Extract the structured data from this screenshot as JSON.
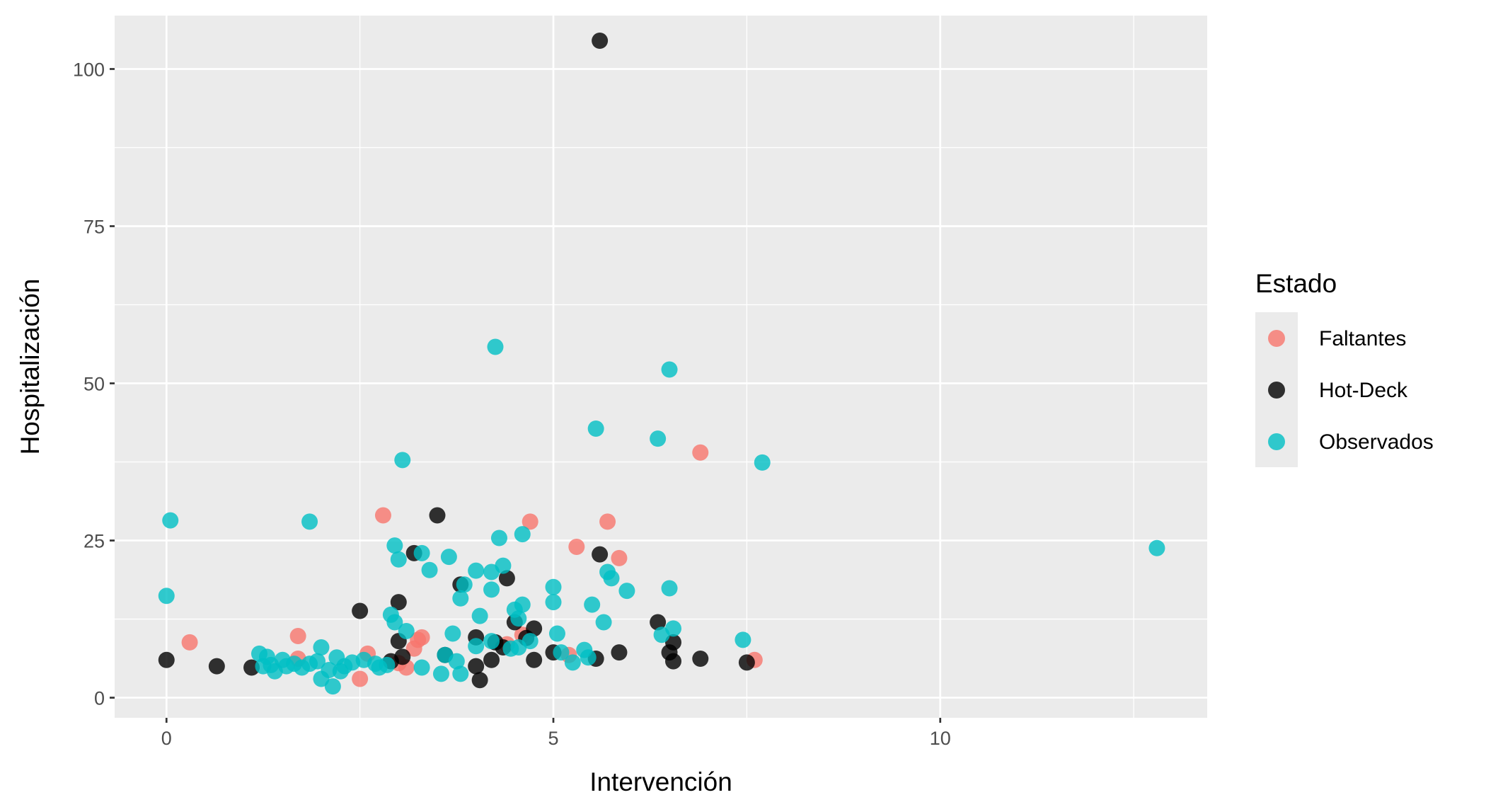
{
  "chart_data": {
    "type": "scatter",
    "title": "",
    "xlabel": "Intervención",
    "ylabel": "Hospitalización",
    "xlim": [
      -0.67,
      13.45
    ],
    "ylim": [
      -3.2,
      108.5
    ],
    "x_ticks": [
      0,
      5,
      10
    ],
    "x_tick_labels": [
      "0",
      "5",
      "10"
    ],
    "y_ticks": [
      0,
      25,
      50,
      75,
      100
    ],
    "y_tick_labels": [
      "0",
      "25",
      "50",
      "75",
      "100"
    ],
    "grid": true,
    "legend": {
      "title": "Estado",
      "position": "right",
      "entries": [
        {
          "label": "Faltantes",
          "color": "#F8766D"
        },
        {
          "label": "Hot-Deck",
          "color": "#000000"
        },
        {
          "label": "Observados",
          "color": "#00BFC4"
        }
      ]
    },
    "colors": {
      "panel_background": "#EBEBEB",
      "grid": "#FFFFFF"
    },
    "series": [
      {
        "name": "Faltantes",
        "color": "#F8766D",
        "points": [
          [
            0.3,
            8.8
          ],
          [
            1.7,
            9.8
          ],
          [
            1.7,
            6.2
          ],
          [
            2.5,
            3.0
          ],
          [
            2.6,
            7.0
          ],
          [
            2.8,
            29.0
          ],
          [
            3.1,
            4.8
          ],
          [
            3.2,
            7.8
          ],
          [
            3.25,
            9.2
          ],
          [
            3.3,
            9.6
          ],
          [
            4.6,
            10.0
          ],
          [
            4.7,
            28.0
          ],
          [
            5.3,
            24.0
          ],
          [
            5.2,
            6.8
          ],
          [
            5.7,
            28.0
          ],
          [
            5.85,
            22.2
          ],
          [
            6.9,
            39.0
          ],
          [
            7.6,
            6.0
          ],
          [
            4.4,
            8.5
          ],
          [
            3.0,
            5.5
          ]
        ]
      },
      {
        "name": "Hot-Deck",
        "color": "#000000",
        "points": [
          [
            0.0,
            6.0
          ],
          [
            0.65,
            5.0
          ],
          [
            1.1,
            4.8
          ],
          [
            2.5,
            13.8
          ],
          [
            2.9,
            5.8
          ],
          [
            3.0,
            15.2
          ],
          [
            3.0,
            9.0
          ],
          [
            3.05,
            6.5
          ],
          [
            3.2,
            23.0
          ],
          [
            3.5,
            29.0
          ],
          [
            3.6,
            6.8
          ],
          [
            3.8,
            18.0
          ],
          [
            4.0,
            9.6
          ],
          [
            4.0,
            5.0
          ],
          [
            4.05,
            2.8
          ],
          [
            4.2,
            6.0
          ],
          [
            4.25,
            8.8
          ],
          [
            4.35,
            8.0
          ],
          [
            4.4,
            19.0
          ],
          [
            4.5,
            12.0
          ],
          [
            4.75,
            11.0
          ],
          [
            4.75,
            6.0
          ],
          [
            5.0,
            7.2
          ],
          [
            5.55,
            6.2
          ],
          [
            5.6,
            22.8
          ],
          [
            5.6,
            104.5
          ],
          [
            5.85,
            7.2
          ],
          [
            6.35,
            12.0
          ],
          [
            6.5,
            7.2
          ],
          [
            6.55,
            8.8
          ],
          [
            6.55,
            5.8
          ],
          [
            6.9,
            6.2
          ],
          [
            7.5,
            5.6
          ],
          [
            4.65,
            9.5
          ]
        ]
      },
      {
        "name": "Observados",
        "color": "#00BFC4",
        "points": [
          [
            0.0,
            16.2
          ],
          [
            0.05,
            28.2
          ],
          [
            1.2,
            7.0
          ],
          [
            1.25,
            5.0
          ],
          [
            1.3,
            6.5
          ],
          [
            1.4,
            4.2
          ],
          [
            1.5,
            6.0
          ],
          [
            1.55,
            5.0
          ],
          [
            1.65,
            5.4
          ],
          [
            1.75,
            4.8
          ],
          [
            1.85,
            5.4
          ],
          [
            1.85,
            28.0
          ],
          [
            1.95,
            5.8
          ],
          [
            2.0,
            8.0
          ],
          [
            2.0,
            3.0
          ],
          [
            2.1,
            4.4
          ],
          [
            2.15,
            1.8
          ],
          [
            2.2,
            6.4
          ],
          [
            2.25,
            4.2
          ],
          [
            2.3,
            5.0
          ],
          [
            2.4,
            5.6
          ],
          [
            2.55,
            6.0
          ],
          [
            2.7,
            5.4
          ],
          [
            2.75,
            4.8
          ],
          [
            2.9,
            13.2
          ],
          [
            2.95,
            12.0
          ],
          [
            2.95,
            24.2
          ],
          [
            3.0,
            22.0
          ],
          [
            3.05,
            37.8
          ],
          [
            3.1,
            10.6
          ],
          [
            3.3,
            23.0
          ],
          [
            3.3,
            4.8
          ],
          [
            3.4,
            20.3
          ],
          [
            3.55,
            3.8
          ],
          [
            3.6,
            6.8
          ],
          [
            3.65,
            22.4
          ],
          [
            3.7,
            10.2
          ],
          [
            3.75,
            5.8
          ],
          [
            3.8,
            3.8
          ],
          [
            3.8,
            15.8
          ],
          [
            3.85,
            18.0
          ],
          [
            4.0,
            20.2
          ],
          [
            4.05,
            13.0
          ],
          [
            4.0,
            8.2
          ],
          [
            4.2,
            20.0
          ],
          [
            4.2,
            17.2
          ],
          [
            4.25,
            55.8
          ],
          [
            4.3,
            25.4
          ],
          [
            4.35,
            21.0
          ],
          [
            4.45,
            7.8
          ],
          [
            4.5,
            14.0
          ],
          [
            4.55,
            12.6
          ],
          [
            4.55,
            8.0
          ],
          [
            4.6,
            14.8
          ],
          [
            4.6,
            26.0
          ],
          [
            4.7,
            9.0
          ],
          [
            5.0,
            17.6
          ],
          [
            5.0,
            15.2
          ],
          [
            5.05,
            10.2
          ],
          [
            5.1,
            7.2
          ],
          [
            5.25,
            5.6
          ],
          [
            5.4,
            7.6
          ],
          [
            5.45,
            6.4
          ],
          [
            5.5,
            14.8
          ],
          [
            5.55,
            42.8
          ],
          [
            5.65,
            12.0
          ],
          [
            5.7,
            20.0
          ],
          [
            5.75,
            19.0
          ],
          [
            5.95,
            17.0
          ],
          [
            6.35,
            41.2
          ],
          [
            6.4,
            10.0
          ],
          [
            6.5,
            17.4
          ],
          [
            6.5,
            52.2
          ],
          [
            6.55,
            11.0
          ],
          [
            7.45,
            9.2
          ],
          [
            7.7,
            37.4
          ],
          [
            12.8,
            23.8
          ],
          [
            4.2,
            9.0
          ],
          [
            1.35,
            5.2
          ],
          [
            2.85,
            5.2
          ]
        ]
      }
    ]
  }
}
